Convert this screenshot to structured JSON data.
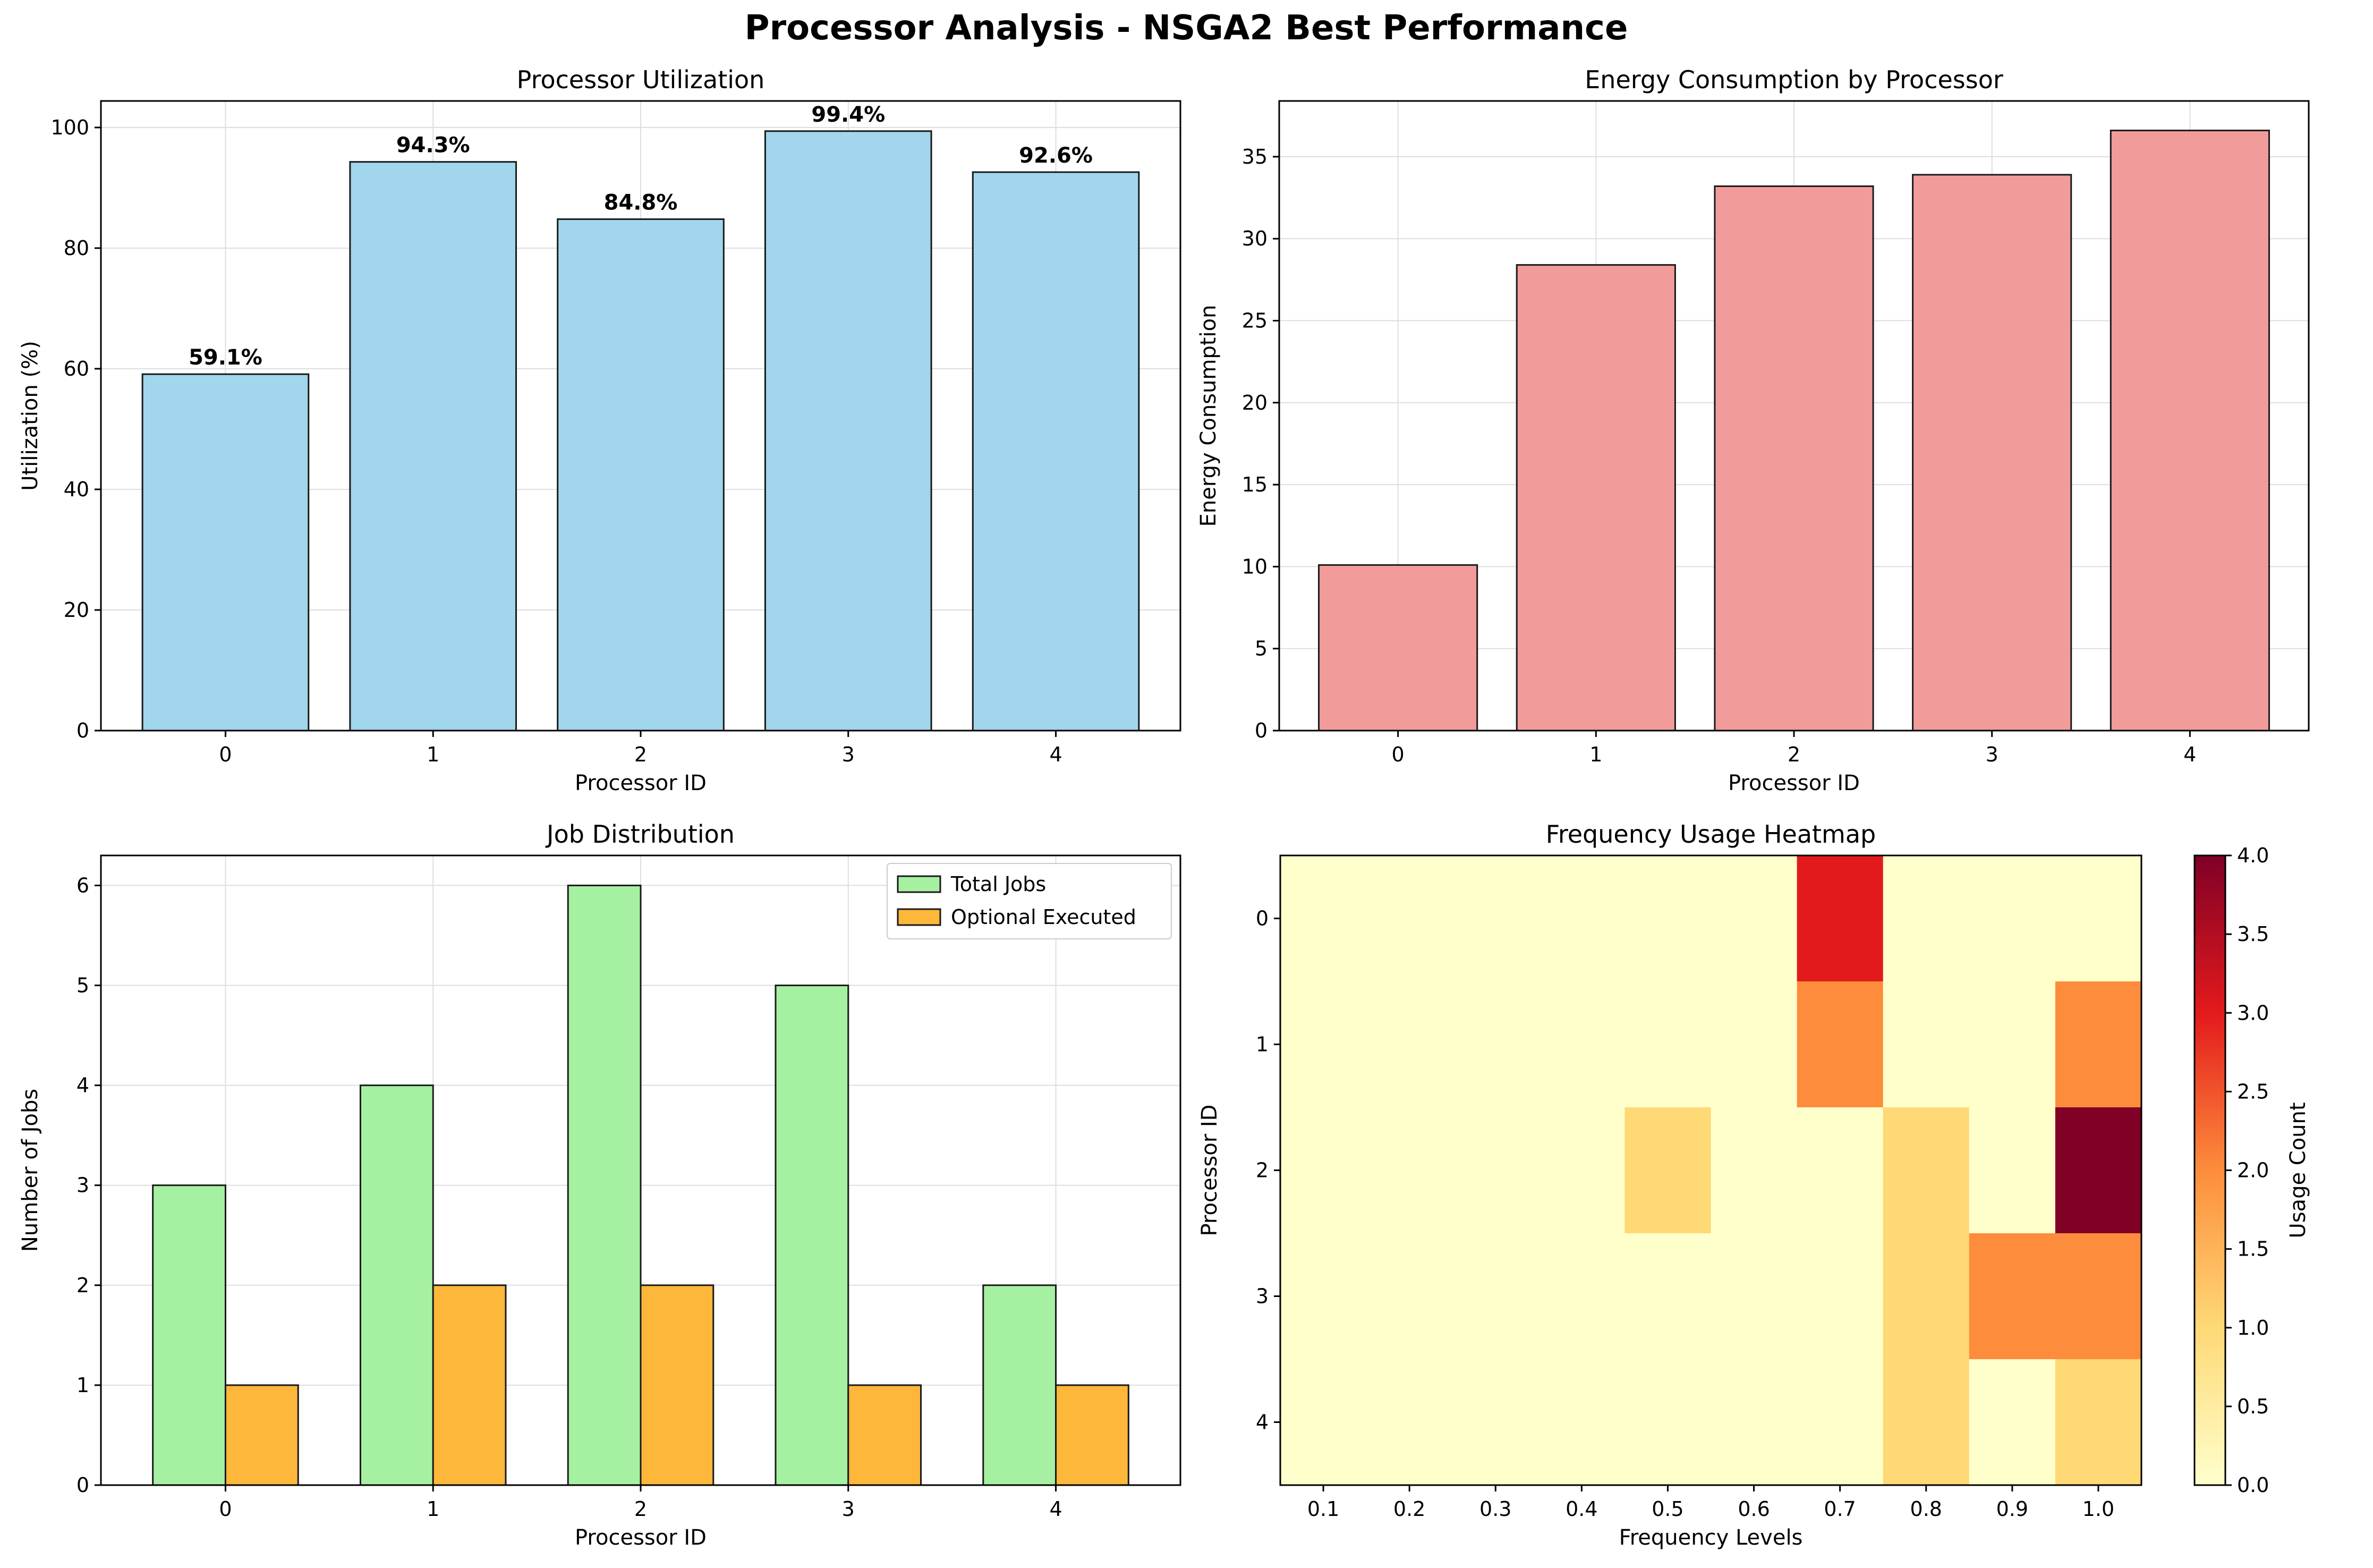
{
  "figure": {
    "title": "Processor Analysis - NSGA2 Best Performance"
  },
  "chart_data": [
    {
      "type": "bar",
      "title": "Processor Utilization",
      "xlabel": "Processor ID",
      "ylabel": "Utilization (%)",
      "categories": [
        "0",
        "1",
        "2",
        "3",
        "4"
      ],
      "values": [
        59.1,
        94.3,
        84.8,
        99.4,
        92.6
      ],
      "data_labels": [
        "59.1%",
        "94.3%",
        "84.8%",
        "99.4%",
        "92.6%"
      ],
      "ylim": [
        0,
        104.4
      ],
      "yticks": [
        0,
        20,
        40,
        60,
        80,
        100
      ],
      "grid": true,
      "colors": {
        "bar": "#a1d6ec",
        "edge": "#1a1a1a"
      }
    },
    {
      "type": "bar",
      "title": "Energy Consumption by Processor",
      "xlabel": "Processor ID",
      "ylabel": "Energy Consumption",
      "categories": [
        "0",
        "1",
        "2",
        "3",
        "4"
      ],
      "values": [
        10.1,
        28.4,
        33.2,
        33.9,
        36.6
      ],
      "ylim": [
        0,
        38.4
      ],
      "yticks": [
        0,
        5,
        10,
        15,
        20,
        25,
        30,
        35
      ],
      "grid": true,
      "colors": {
        "bar": "#f29b9b",
        "edge": "#1a1a1a"
      }
    },
    {
      "type": "bar",
      "title": "Job Distribution",
      "xlabel": "Processor ID",
      "ylabel": "Number of Jobs",
      "categories": [
        "0",
        "1",
        "2",
        "3",
        "4"
      ],
      "series": [
        {
          "name": "Total Jobs",
          "values": [
            3,
            4,
            6,
            5,
            2
          ],
          "color": "#a6f0a2"
        },
        {
          "name": "Optional Executed",
          "values": [
            1,
            2,
            2,
            1,
            1
          ],
          "color": "#fdb73a"
        }
      ],
      "ylim": [
        0,
        6.3
      ],
      "yticks": [
        0,
        1,
        2,
        3,
        4,
        5,
        6
      ],
      "legend": "top-right",
      "grid": true
    },
    {
      "type": "heatmap",
      "title": "Frequency Usage Heatmap",
      "xlabel": "Frequency Levels",
      "ylabel": "Processor ID",
      "x": [
        "0.1",
        "0.2",
        "0.3",
        "0.4",
        "0.5",
        "0.6",
        "0.7",
        "0.8",
        "0.9",
        "1.0"
      ],
      "y": [
        "0",
        "1",
        "2",
        "3",
        "4"
      ],
      "values": [
        [
          0,
          0,
          0,
          0,
          0,
          0,
          3,
          0,
          0,
          0
        ],
        [
          0,
          0,
          0,
          0,
          0,
          0,
          2,
          0,
          0,
          2
        ],
        [
          0,
          0,
          0,
          0,
          1,
          0,
          0,
          1,
          0,
          4
        ],
        [
          0,
          0,
          0,
          0,
          0,
          0,
          0,
          1,
          2,
          2
        ],
        [
          0,
          0,
          0,
          0,
          0,
          0,
          0,
          1,
          0,
          1
        ]
      ],
      "colormap": "YlOrRd",
      "colorbar": {
        "label": "Usage Count",
        "range": [
          0,
          4
        ],
        "ticks": [
          "0.0",
          "0.5",
          "1.0",
          "1.5",
          "2.0",
          "2.5",
          "3.0",
          "3.5",
          "4.0"
        ]
      },
      "grid": false
    }
  ]
}
